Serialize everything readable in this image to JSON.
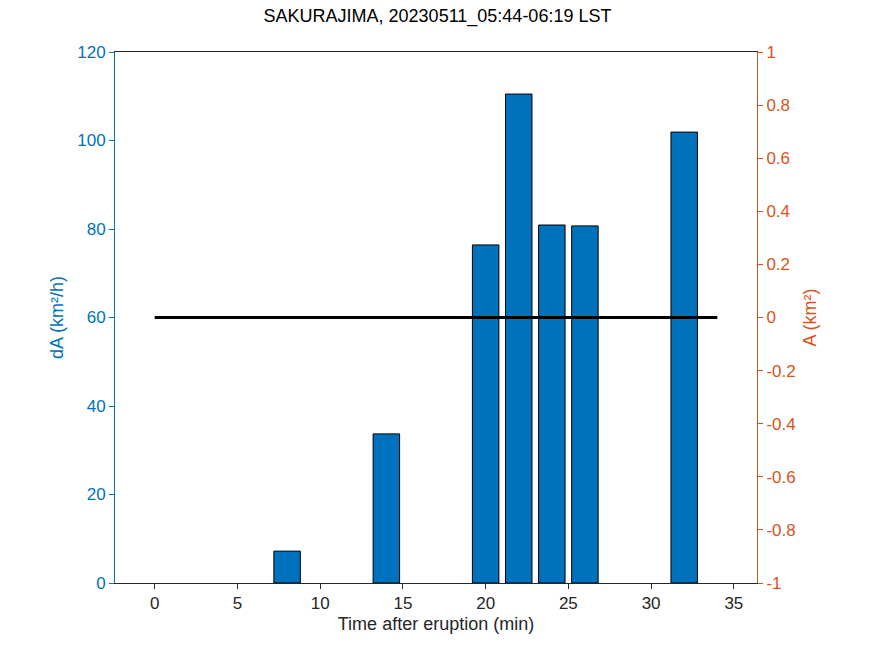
{
  "chart_data": {
    "type": "bar",
    "title": "SAKURAJIMA, 20230511_05:44-06:19 LST",
    "x_label": "Time after eruption (min)",
    "y_label": "dA (km²/h)",
    "y2_label": "A (km²)",
    "xlim": [
      -2.4,
      36.4
    ],
    "xticks": [
      0,
      5,
      10,
      15,
      20,
      25,
      30,
      35
    ],
    "ylim": [
      0,
      120
    ],
    "yticks": [
      0,
      20,
      40,
      60,
      80,
      100,
      120
    ],
    "y2lim": [
      -1,
      1
    ],
    "y2ticks": [
      -1,
      -0.8,
      -0.6,
      -0.4,
      -0.2,
      0,
      0.2,
      0.4,
      0.6,
      0.8,
      1
    ],
    "grid": false,
    "series": [
      {
        "name": "dA",
        "type": "bar",
        "axis": "y",
        "color": "#0072bd",
        "x": [
          8,
          14,
          20,
          22,
          24,
          26,
          32
        ],
        "values": [
          7.2,
          33.7,
          76.4,
          110.5,
          80.9,
          80.7,
          101.9
        ]
      },
      {
        "name": "A",
        "type": "line",
        "axis": "y2",
        "color": "#000000",
        "line_style": "solid",
        "x": [
          0,
          34
        ],
        "values": [
          0,
          0
        ]
      }
    ]
  }
}
